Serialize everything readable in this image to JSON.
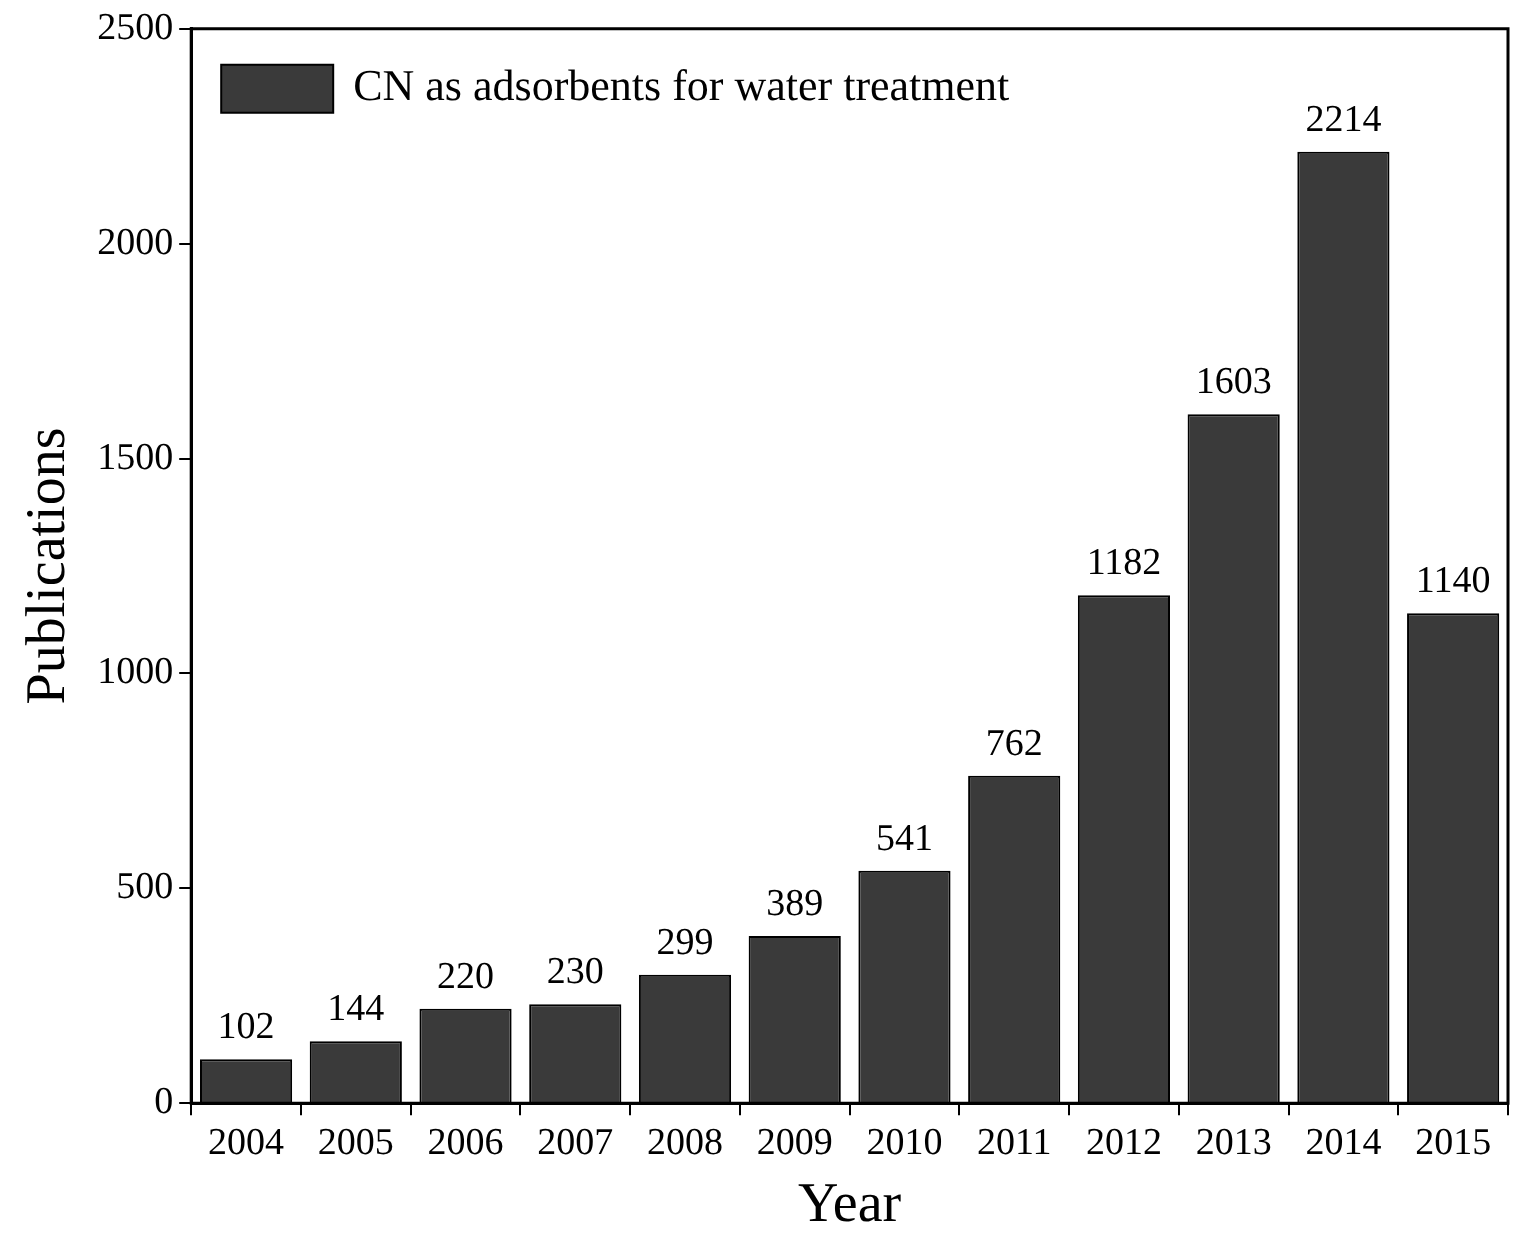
{
  "chart_data": {
    "type": "bar",
    "xlabel": "Year",
    "ylabel": "Publications",
    "categories": [
      "2004",
      "2005",
      "2006",
      "2007",
      "2008",
      "2009",
      "2010",
      "2011",
      "2012",
      "2013",
      "2014",
      "2015"
    ],
    "series": [
      {
        "name": "CN as adsorbents for water treatment",
        "color": "#3a3a3a",
        "values": [
          102,
          144,
          220,
          230,
          299,
          389,
          541,
          762,
          1182,
          1603,
          2214,
          1140
        ]
      }
    ],
    "ylim": [
      0,
      2500
    ],
    "yticks": [
      0,
      500,
      1000,
      1500,
      2000,
      2500
    ],
    "grid": false,
    "legend": "top left",
    "data_labels": true
  }
}
